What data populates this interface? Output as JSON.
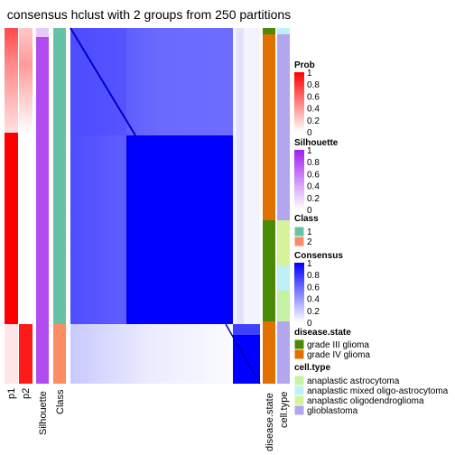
{
  "title": "consensus hclust with 2 groups from 250 partitions",
  "chart_data": {
    "type": "heatmap",
    "title": "consensus hclust with 2 groups from 250 partitions",
    "annotation_columns": [
      "p1",
      "p2",
      "Silhouette",
      "Class"
    ],
    "right_annotation_columns": [
      "disease.state",
      "cell.type"
    ],
    "groups": 2,
    "partitions": 250,
    "legends": {
      "prob": {
        "title": "Prob",
        "ticks": [
          "1",
          "0.8",
          "0.6",
          "0.4",
          "0.2",
          "0"
        ],
        "color_low": "#ffffff",
        "color_high": "#ff0000"
      },
      "silhouette": {
        "title": "Silhouette",
        "ticks": [
          "1",
          "0.8",
          "0.6",
          "0.4",
          "0.2",
          "0"
        ],
        "color_low": "#ffffff",
        "color_high": "#a020f0"
      },
      "class": {
        "title": "Class",
        "items": [
          {
            "label": "1",
            "color": "#66c2a5"
          },
          {
            "label": "2",
            "color": "#fc8d62"
          }
        ]
      },
      "consensus": {
        "title": "Consensus",
        "ticks": [
          "1",
          "0.8",
          "0.6",
          "0.4",
          "0.2",
          "0"
        ],
        "color_low": "#ffffff",
        "color_high": "#0000ff"
      },
      "disease_state": {
        "title": "disease.state",
        "items": [
          {
            "label": "grade III glioma",
            "color": "#4b8a06"
          },
          {
            "label": "grade IV glioma",
            "color": "#e07000"
          }
        ]
      },
      "cell_type": {
        "title": "cell.type",
        "items": [
          {
            "label": "anaplastic astrocytoma",
            "color": "#c5f3a3"
          },
          {
            "label": "anaplastic mixed oligo-astrocytoma",
            "color": "#bdf1f7"
          },
          {
            "label": "anaplastic oligodendroglioma",
            "color": "#d6f39a"
          },
          {
            "label": "glioblastoma",
            "color": "#b3a6f0"
          }
        ]
      }
    }
  }
}
